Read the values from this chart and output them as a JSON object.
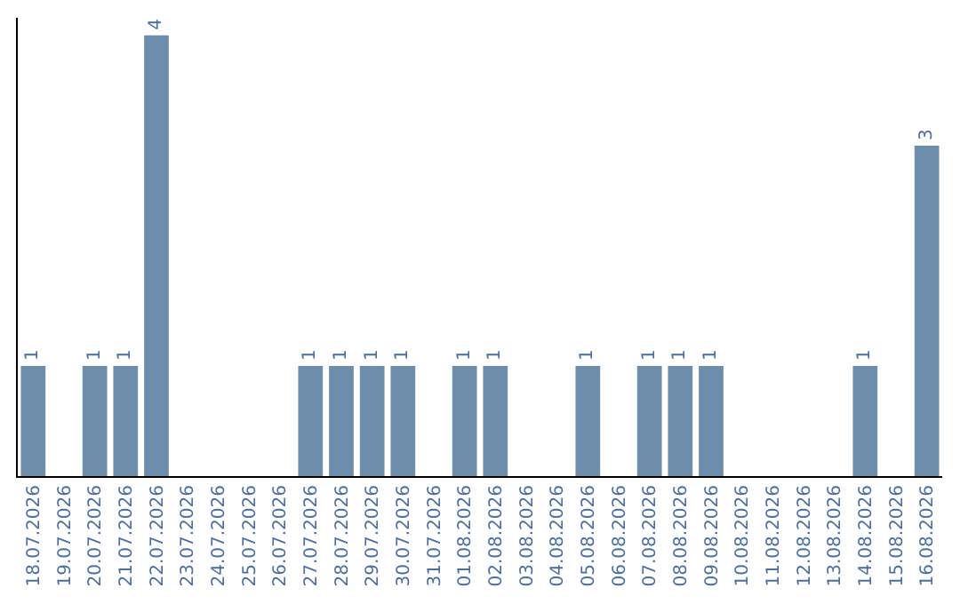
{
  "chart_data": {
    "type": "bar",
    "categories": [
      "18.07.2026",
      "19.07.2026",
      "20.07.2026",
      "21.07.2026",
      "22.07.2026",
      "23.07.2026",
      "24.07.2026",
      "25.07.2026",
      "26.07.2026",
      "27.07.2026",
      "28.07.2026",
      "29.07.2026",
      "30.07.2026",
      "31.07.2026",
      "01.08.2026",
      "02.08.2026",
      "03.08.2026",
      "04.08.2026",
      "05.08.2026",
      "06.08.2026",
      "07.08.2026",
      "08.08.2026",
      "09.08.2026",
      "10.08.2026",
      "11.08.2026",
      "12.08.2026",
      "13.08.2026",
      "14.08.2026",
      "15.08.2026",
      "16.08.2026"
    ],
    "values": [
      1,
      0,
      1,
      1,
      4,
      0,
      0,
      0,
      0,
      1,
      1,
      1,
      1,
      0,
      1,
      1,
      0,
      0,
      1,
      0,
      1,
      1,
      1,
      0,
      0,
      0,
      0,
      1,
      0,
      3
    ],
    "value_labels": [
      "1",
      null,
      "1",
      "1",
      "4",
      null,
      null,
      null,
      null,
      "1",
      "1",
      "1",
      "1",
      null,
      "1",
      "1",
      null,
      null,
      "1",
      null,
      "1",
      "1",
      "1",
      null,
      null,
      null,
      null,
      "1",
      null,
      "3"
    ],
    "color": "#6e8dab",
    "ylim": [
      0,
      4.16
    ],
    "tick_labels": "x"
  }
}
